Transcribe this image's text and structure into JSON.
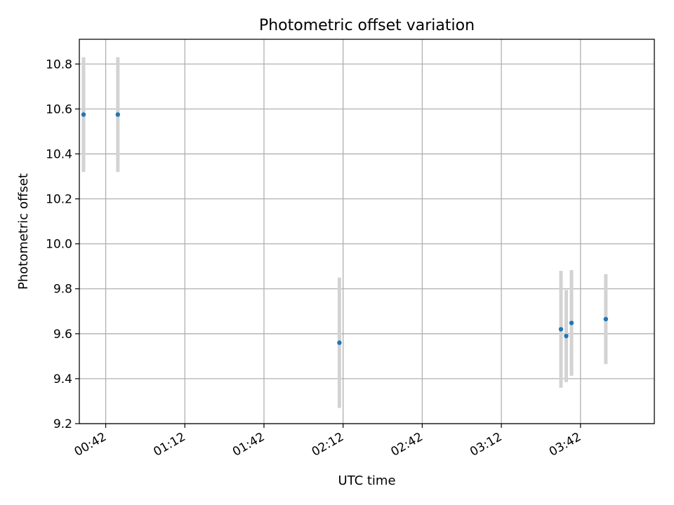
{
  "chart_data": {
    "type": "scatter",
    "title": "Photometric offset variation",
    "xlabel": "UTC time",
    "ylabel": "Photometric offset",
    "xlim": [
      "00:32",
      "04:10"
    ],
    "ylim": [
      9.2,
      10.91
    ],
    "x_ticks": [
      "00:42",
      "01:12",
      "01:42",
      "02:12",
      "02:42",
      "03:12",
      "03:42"
    ],
    "y_ticks": [
      9.2,
      9.4,
      9.6,
      9.8,
      10.0,
      10.2,
      10.4,
      10.6,
      10.8
    ],
    "grid": true,
    "legend": false,
    "colors": {
      "point": "#1f77b4",
      "errorbar": "#d3d3d3",
      "grid": "#b0b0b0"
    },
    "points": [
      {
        "x": "00:32",
        "y": 10.575,
        "err": 0.255
      },
      {
        "x": "00:45",
        "y": 10.575,
        "err": 0.255
      },
      {
        "x": "02:09",
        "y": 9.56,
        "err": 0.29
      },
      {
        "x": "03:33",
        "y": 9.62,
        "err": 0.26
      },
      {
        "x": "03:35",
        "y": 9.59,
        "err": 0.205
      },
      {
        "x": "03:37",
        "y": 9.648,
        "err": 0.235
      },
      {
        "x": "03:50",
        "y": 9.665,
        "err": 0.2
      }
    ]
  }
}
